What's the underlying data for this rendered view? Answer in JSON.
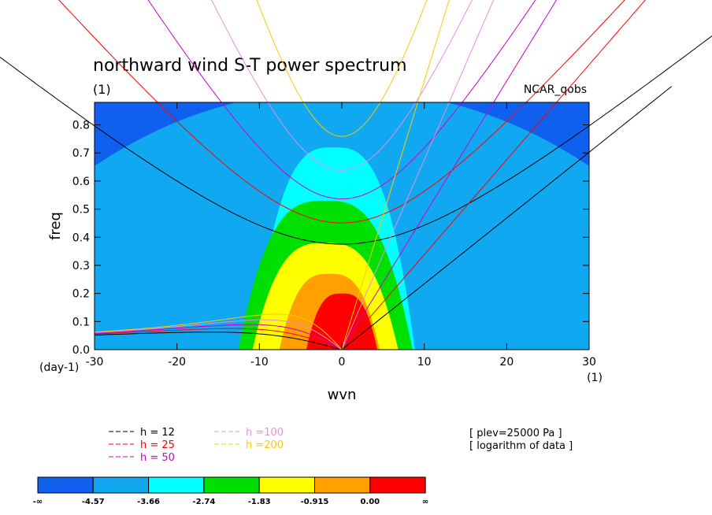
{
  "chart_data": {
    "type": "heatmap",
    "title": "northward wind S-T power spectrum",
    "subtitle_left": "(1)",
    "subtitle_right": "NCAR_qobs",
    "xlabel": "wvn",
    "ylabel": "freq",
    "x_unit": "(1)",
    "y_unit": "(day-1)",
    "xlim": [
      -30,
      30
    ],
    "ylim": [
      0,
      0.88
    ],
    "x_ticks": [
      -30,
      -20,
      -10,
      0,
      10,
      20,
      30
    ],
    "y_ticks": [
      0.0,
      0.1,
      0.2,
      0.3,
      0.4,
      0.5,
      0.6,
      0.7,
      0.8
    ],
    "colorbar": {
      "tick_labels": [
        "-∞",
        "-4.57",
        "-3.66",
        "-2.74",
        "-1.83",
        "-0.915",
        "0.00",
        "∞"
      ],
      "colors": [
        "#1060f0",
        "#10a8f0",
        "#00ffff",
        "#00e000",
        "#ffff00",
        "#ffa000",
        "#ff0000"
      ]
    },
    "contour_fields": [
      {
        "level": "-4.57",
        "color": "#10a8f0",
        "center_x": 0,
        "a": 0.92,
        "b": 1e-05,
        "c": 0.55
      },
      {
        "level": "-3.66",
        "color": "#00ffff",
        "center_x": -1,
        "a": 0.72,
        "b": 0.00075,
        "c": 0.5
      },
      {
        "level": "-2.74",
        "color": "#00e000",
        "center_x": -2,
        "a": 0.53,
        "b": 0.00045,
        "c": 0.55
      },
      {
        "level": "-1.83",
        "color": "#ffff00",
        "center_x": -2,
        "a": 0.38,
        "b": 0.00055,
        "c": 0.5
      },
      {
        "level": "-0.915",
        "color": "#ffa000",
        "center_x": -1.5,
        "a": 0.27,
        "b": 0.0012,
        "c": 0.45
      },
      {
        "level": "0.00",
        "color": "#ff0000",
        "center_x": 0,
        "a": 0.2,
        "b": 0.0025,
        "c": 0.4
      }
    ],
    "dispersion_curves": [
      {
        "name": "h = 12",
        "h": 12,
        "color": "#000000"
      },
      {
        "name": "h = 25",
        "h": 25,
        "color": "#ff0000"
      },
      {
        "name": "h = 50",
        "h": 50,
        "color": "#cc00cc"
      },
      {
        "name": "h =100",
        "h": 100,
        "color": "#e090e0"
      },
      {
        "name": "h =200",
        "h": 200,
        "color": "#ffc800"
      }
    ],
    "notes": [
      "[ plev=25000 Pa ]",
      "[ logarithm of data ]"
    ]
  }
}
